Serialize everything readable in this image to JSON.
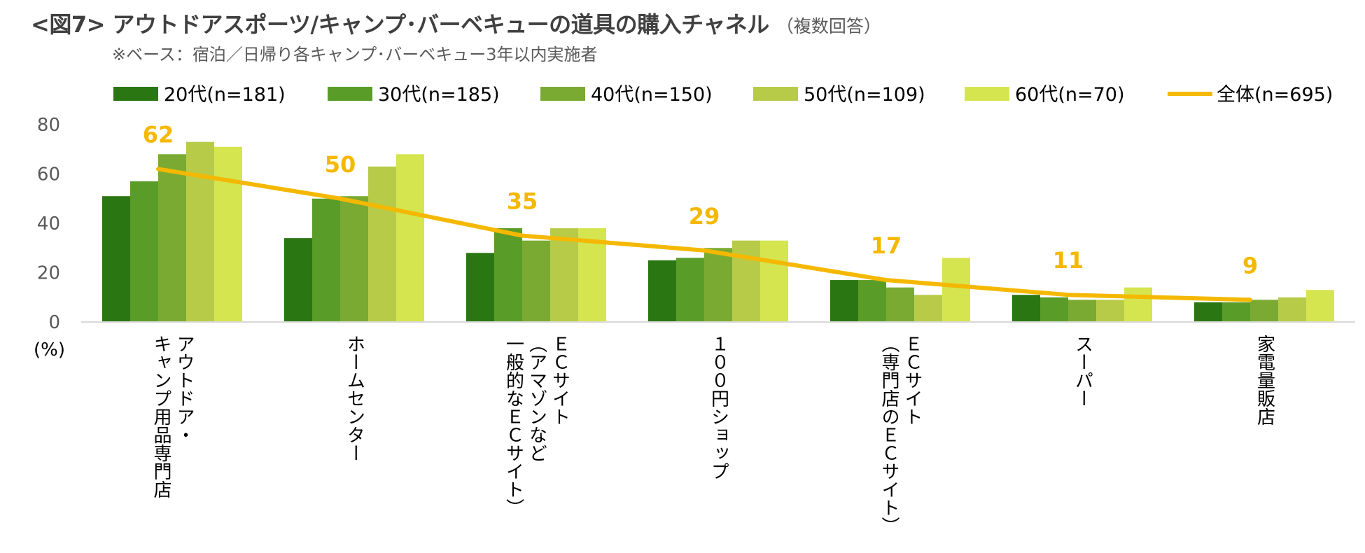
{
  "title": "<図7> アウトドアスポーツ/キャンプ･バーベキューの道具の購入チャネル",
  "title_note": "（複数回答）",
  "subtitle": "※ベース：宿泊／日帰り各キャンプ･バーベキュー3年以内実施者",
  "chart_data": {
    "type": "bar",
    "y_unit": "(%)",
    "ylim": [
      0,
      80
    ],
    "yticks": [
      0,
      20,
      40,
      60,
      80
    ],
    "legend_position": "top",
    "categories": [
      "アウトドア・\nキャンプ用品専門店",
      "ホームセンター",
      "ＥＣサイト\n（アマゾンなど\n一般的なＥＣサイト）",
      "１００円ショップ",
      "ＥＣサイト\n（専門店のＥＣサイト）",
      "スーパー",
      "家電量販店"
    ],
    "series": [
      {
        "name": "20代(n=181)",
        "color": "#2a7612",
        "values": [
          51,
          34,
          28,
          25,
          17,
          11,
          8
        ]
      },
      {
        "name": "30代(n=185)",
        "color": "#5a9c28",
        "values": [
          57,
          50,
          38,
          26,
          17,
          10,
          8
        ]
      },
      {
        "name": "40代(n=150)",
        "color": "#7aaa32",
        "values": [
          68,
          51,
          33,
          30,
          14,
          9,
          9
        ]
      },
      {
        "name": "50代(n=109)",
        "color": "#b8cb48",
        "values": [
          73,
          63,
          38,
          33,
          11,
          9,
          10
        ]
      },
      {
        "name": "60代(n=70)",
        "color": "#d4e550",
        "values": [
          71,
          68,
          38,
          33,
          26,
          14,
          13
        ]
      }
    ],
    "line_series": {
      "name": "全体(n=695)",
      "color": "#f5b800",
      "values": [
        62,
        50,
        35,
        29,
        17,
        11,
        9
      ],
      "labels": [
        "62",
        "50",
        "35",
        "29",
        "17",
        "11",
        "9"
      ]
    }
  }
}
